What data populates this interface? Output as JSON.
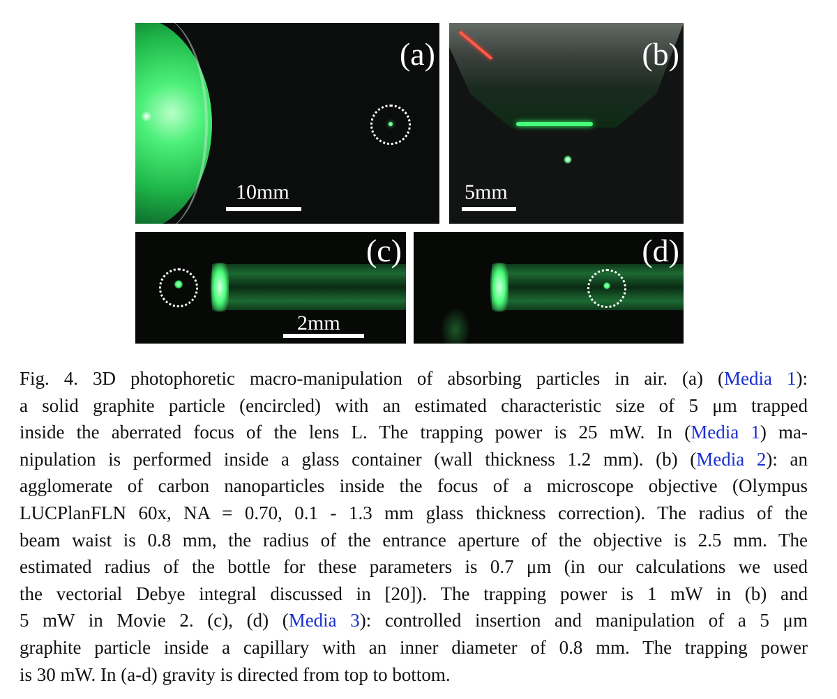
{
  "figure": {
    "panels": {
      "a": {
        "label": "(a)",
        "scale_text": "10mm"
      },
      "b": {
        "label": "(b)",
        "scale_text": "5mm"
      },
      "c": {
        "label": "(c)",
        "scale_text": "2mm"
      },
      "d": {
        "label": "(d)"
      }
    }
  },
  "caption": {
    "lines": [
      [
        {
          "t": "Fig. 4. 3D photophoretic macro-manipulation of absorbing particles in air. (a) ("
        },
        {
          "t": "Media 1",
          "link": true
        },
        {
          "t": "):"
        }
      ],
      [
        {
          "t": "a solid graphite particle (encircled) with an estimated characteristic size of 5 μm trapped"
        }
      ],
      [
        {
          "t": "inside the aberrated focus of the lens L. The trapping power is  25 mW. In ("
        },
        {
          "t": "Media 1",
          "link": true
        },
        {
          "t": ") ma-"
        }
      ],
      [
        {
          "t": "nipulation is performed inside a glass container (wall thickness  1.2 mm). (b) ("
        },
        {
          "t": "Media 2",
          "link": true
        },
        {
          "t": "): an"
        }
      ],
      [
        {
          "t": "agglomerate of carbon nanoparticles inside the focus of a microscope objective (Olympus"
        }
      ],
      [
        {
          "t": "LUCPlanFLN 60x, NA = 0.70, 0.1 - 1.3 mm glass thickness correction). The radius of the"
        }
      ],
      [
        {
          "t": "beam waist is  0.8 mm, the radius of the entrance aperture of the objective is  2.5 mm. The"
        }
      ],
      [
        {
          "t": "estimated radius of the bottle for these parameters is  0.7 μm (in our calculations we used"
        }
      ],
      [
        {
          "t": "the vectorial Debye integral discussed in [20]). The trapping power is  1 mW in (b) and"
        }
      ],
      [
        {
          "t": "5 mW in Movie 2. (c), (d) ("
        },
        {
          "t": "Media 3",
          "link": true
        },
        {
          "t": "): controlled insertion and manipulation of a  5 μm"
        }
      ],
      [
        {
          "t": "graphite particle inside a capillary with an inner diameter of 0.8 mm. The trapping power"
        }
      ],
      [
        {
          "t": "is  30 mW. In (a-d) gravity is directed from top to bottom."
        }
      ]
    ]
  },
  "colors": {
    "link": "#1a2fd0",
    "laser_green": "#39ff6a"
  }
}
